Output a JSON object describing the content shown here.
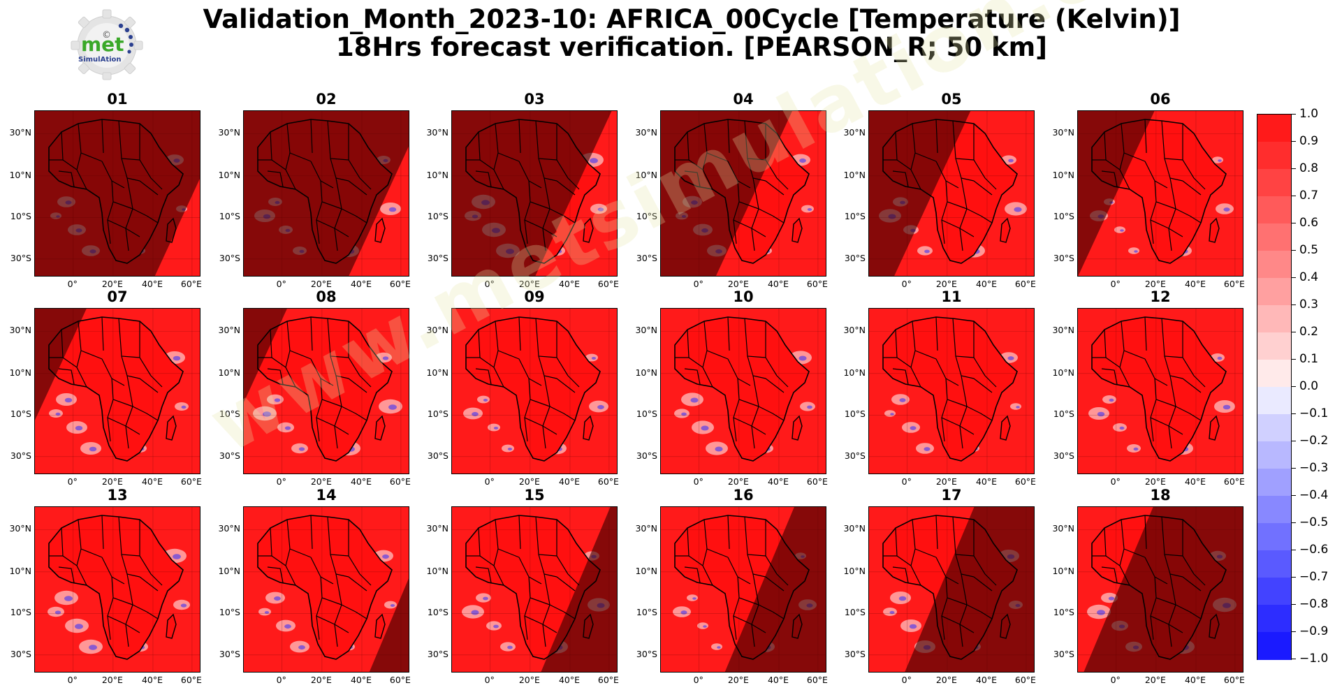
{
  "header": {
    "title_line1": "Validation_Month_2023-10: AFRICA_00Cycle [Temperature (Kelvin)]",
    "title_line2": "18Hrs forecast verification.  [PEARSON_R; 50 km]"
  },
  "logo": {
    "text_main": "met",
    "text_sub": "SimulAtion",
    "symbol": "©"
  },
  "watermark": {
    "text": "www.metsimulation.com"
  },
  "colors": {
    "corr_pos": "#ff1a1a",
    "corr_neg": "#1a1aff",
    "night_overlay": "rgba(60,0,0,0.62)",
    "land_dark": "#8a0a0a",
    "border_line": "#000000"
  },
  "map_axes": {
    "lat_ticks": [
      "30°N",
      "10°N",
      "10°S",
      "30°S"
    ],
    "lon_ticks": [
      "0°",
      "20°E",
      "40°E",
      "60°E"
    ]
  },
  "panels": [
    {
      "label": "01",
      "shade_pct": 97
    },
    {
      "label": "02",
      "shade_pct": 88
    },
    {
      "label": "03",
      "shade_pct": 75
    },
    {
      "label": "04",
      "shade_pct": 58
    },
    {
      "label": "05",
      "shade_pct": 40
    },
    {
      "label": "06",
      "shade_pct": 25
    },
    {
      "label": "07",
      "shade_pct": 10
    },
    {
      "label": "08",
      "shade_pct": 5
    },
    {
      "label": "09",
      "shade_pct": 0
    },
    {
      "label": "10",
      "shade_pct": 0
    },
    {
      "label": "11",
      "shade_pct": 0
    },
    {
      "label": "12",
      "shade_pct": 0
    },
    {
      "label": "13",
      "shade_pct": 0
    },
    {
      "label": "14",
      "shade_pct": 8
    },
    {
      "label": "15",
      "shade_pct": 30
    },
    {
      "label": "16",
      "shade_pct": 45
    },
    {
      "label": "17",
      "shade_pct": 62
    },
    {
      "label": "18",
      "shade_pct": 80
    }
  ],
  "colorbar": {
    "ticks": [
      "1.0",
      "0.9",
      "0.8",
      "0.7",
      "0.6",
      "0.5",
      "0.4",
      "0.3",
      "0.2",
      "0.1",
      "0.0",
      "−0.1",
      "−0.2",
      "−0.3",
      "−0.4",
      "−0.5",
      "−0.6",
      "−0.7",
      "−0.8",
      "−0.9",
      "−1.0"
    ],
    "colors": [
      "#ff1a1a",
      "#ff2d2d",
      "#ff4343",
      "#ff5a5a",
      "#ff7171",
      "#ff8888",
      "#ffa0a0",
      "#ffb8b8",
      "#ffd0d0",
      "#ffeaea",
      "#eaeaff",
      "#d0d0ff",
      "#b8b8ff",
      "#a0a0ff",
      "#8888ff",
      "#7171ff",
      "#5a5aff",
      "#4343ff",
      "#2d2dff",
      "#1a1aff"
    ]
  }
}
